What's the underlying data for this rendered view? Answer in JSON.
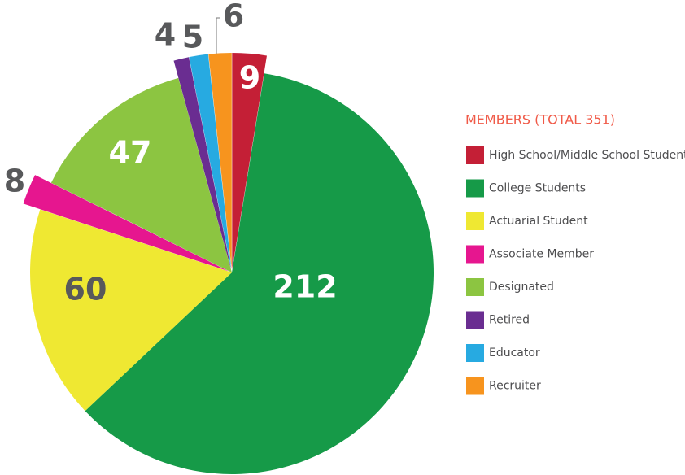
{
  "chart_data": {
    "type": "pie",
    "legend_title": "MEMBERS (TOTAL 351)",
    "categories": [
      "High School/Middle School Students",
      "College Students",
      "Actuarial Student",
      "Associate Member",
      "Designated",
      "Retired",
      "Educator",
      "Recruiter"
    ],
    "values": [
      9,
      212,
      60,
      8,
      47,
      4,
      5,
      6
    ],
    "colors": [
      "#c41f36",
      "#169a48",
      "#efe832",
      "#e6168f",
      "#8cc541",
      "#6a2d91",
      "#27aae1",
      "#f7941e"
    ]
  }
}
